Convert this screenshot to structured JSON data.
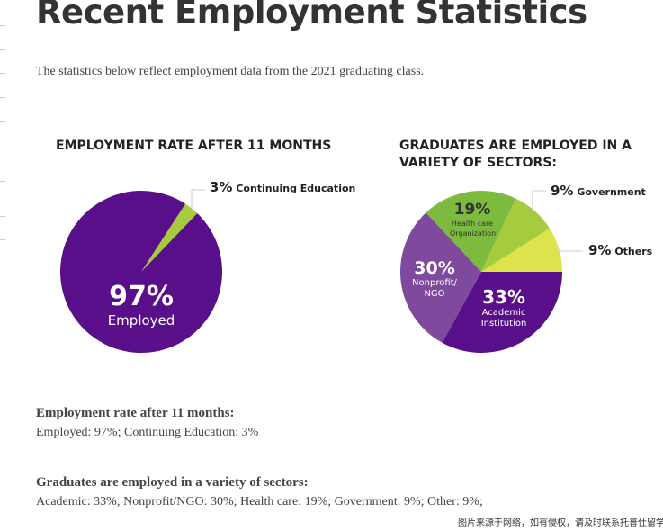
{
  "title": "Recent Employment Statistics",
  "intro": "The statistics below reflect employment data from the 2021 graduating class.",
  "chart_data": [
    {
      "type": "pie",
      "title": "EMPLOYMENT RATE AFTER 11 MONTHS",
      "slices": [
        {
          "name": "Employed",
          "value": 97,
          "label": "97%",
          "color": "#5a0f8a"
        },
        {
          "name": "Continuing Education",
          "value": 3,
          "label": "3%",
          "color": "#a6cc3e"
        }
      ]
    },
    {
      "type": "pie",
      "title": "GRADUATES ARE EMPLOYED IN A VARIETY OF SECTORS:",
      "slices": [
        {
          "name": "Academic Institution",
          "value": 33,
          "label": "33%",
          "color": "#5a0f8a"
        },
        {
          "name": "Nonprofit/ NGO",
          "value": 30,
          "label": "30%",
          "color": "#7f4a9e"
        },
        {
          "name": "Health care Organization",
          "value": 19,
          "label": "19%",
          "color": "#7dbb3f"
        },
        {
          "name": "Government",
          "value": 9,
          "label": "9%",
          "color": "#a6cc3e"
        },
        {
          "name": "Others",
          "value": 9,
          "label": "9%",
          "color": "#dde34a"
        }
      ]
    }
  ],
  "summary": [
    {
      "heading": "Employment rate after 11 months:",
      "text": "Employed: 97%; Continuing Education: 3%"
    },
    {
      "heading": "Graduates are employed in a variety of sectors:",
      "text": "Academic: 33%; Nonprofit/NGO: 30%; Health care: 19%; Government: 9%; Other: 9%;"
    }
  ],
  "watermark": "图片来源于网络，如有侵权，请及时联系托普仕留学删除"
}
